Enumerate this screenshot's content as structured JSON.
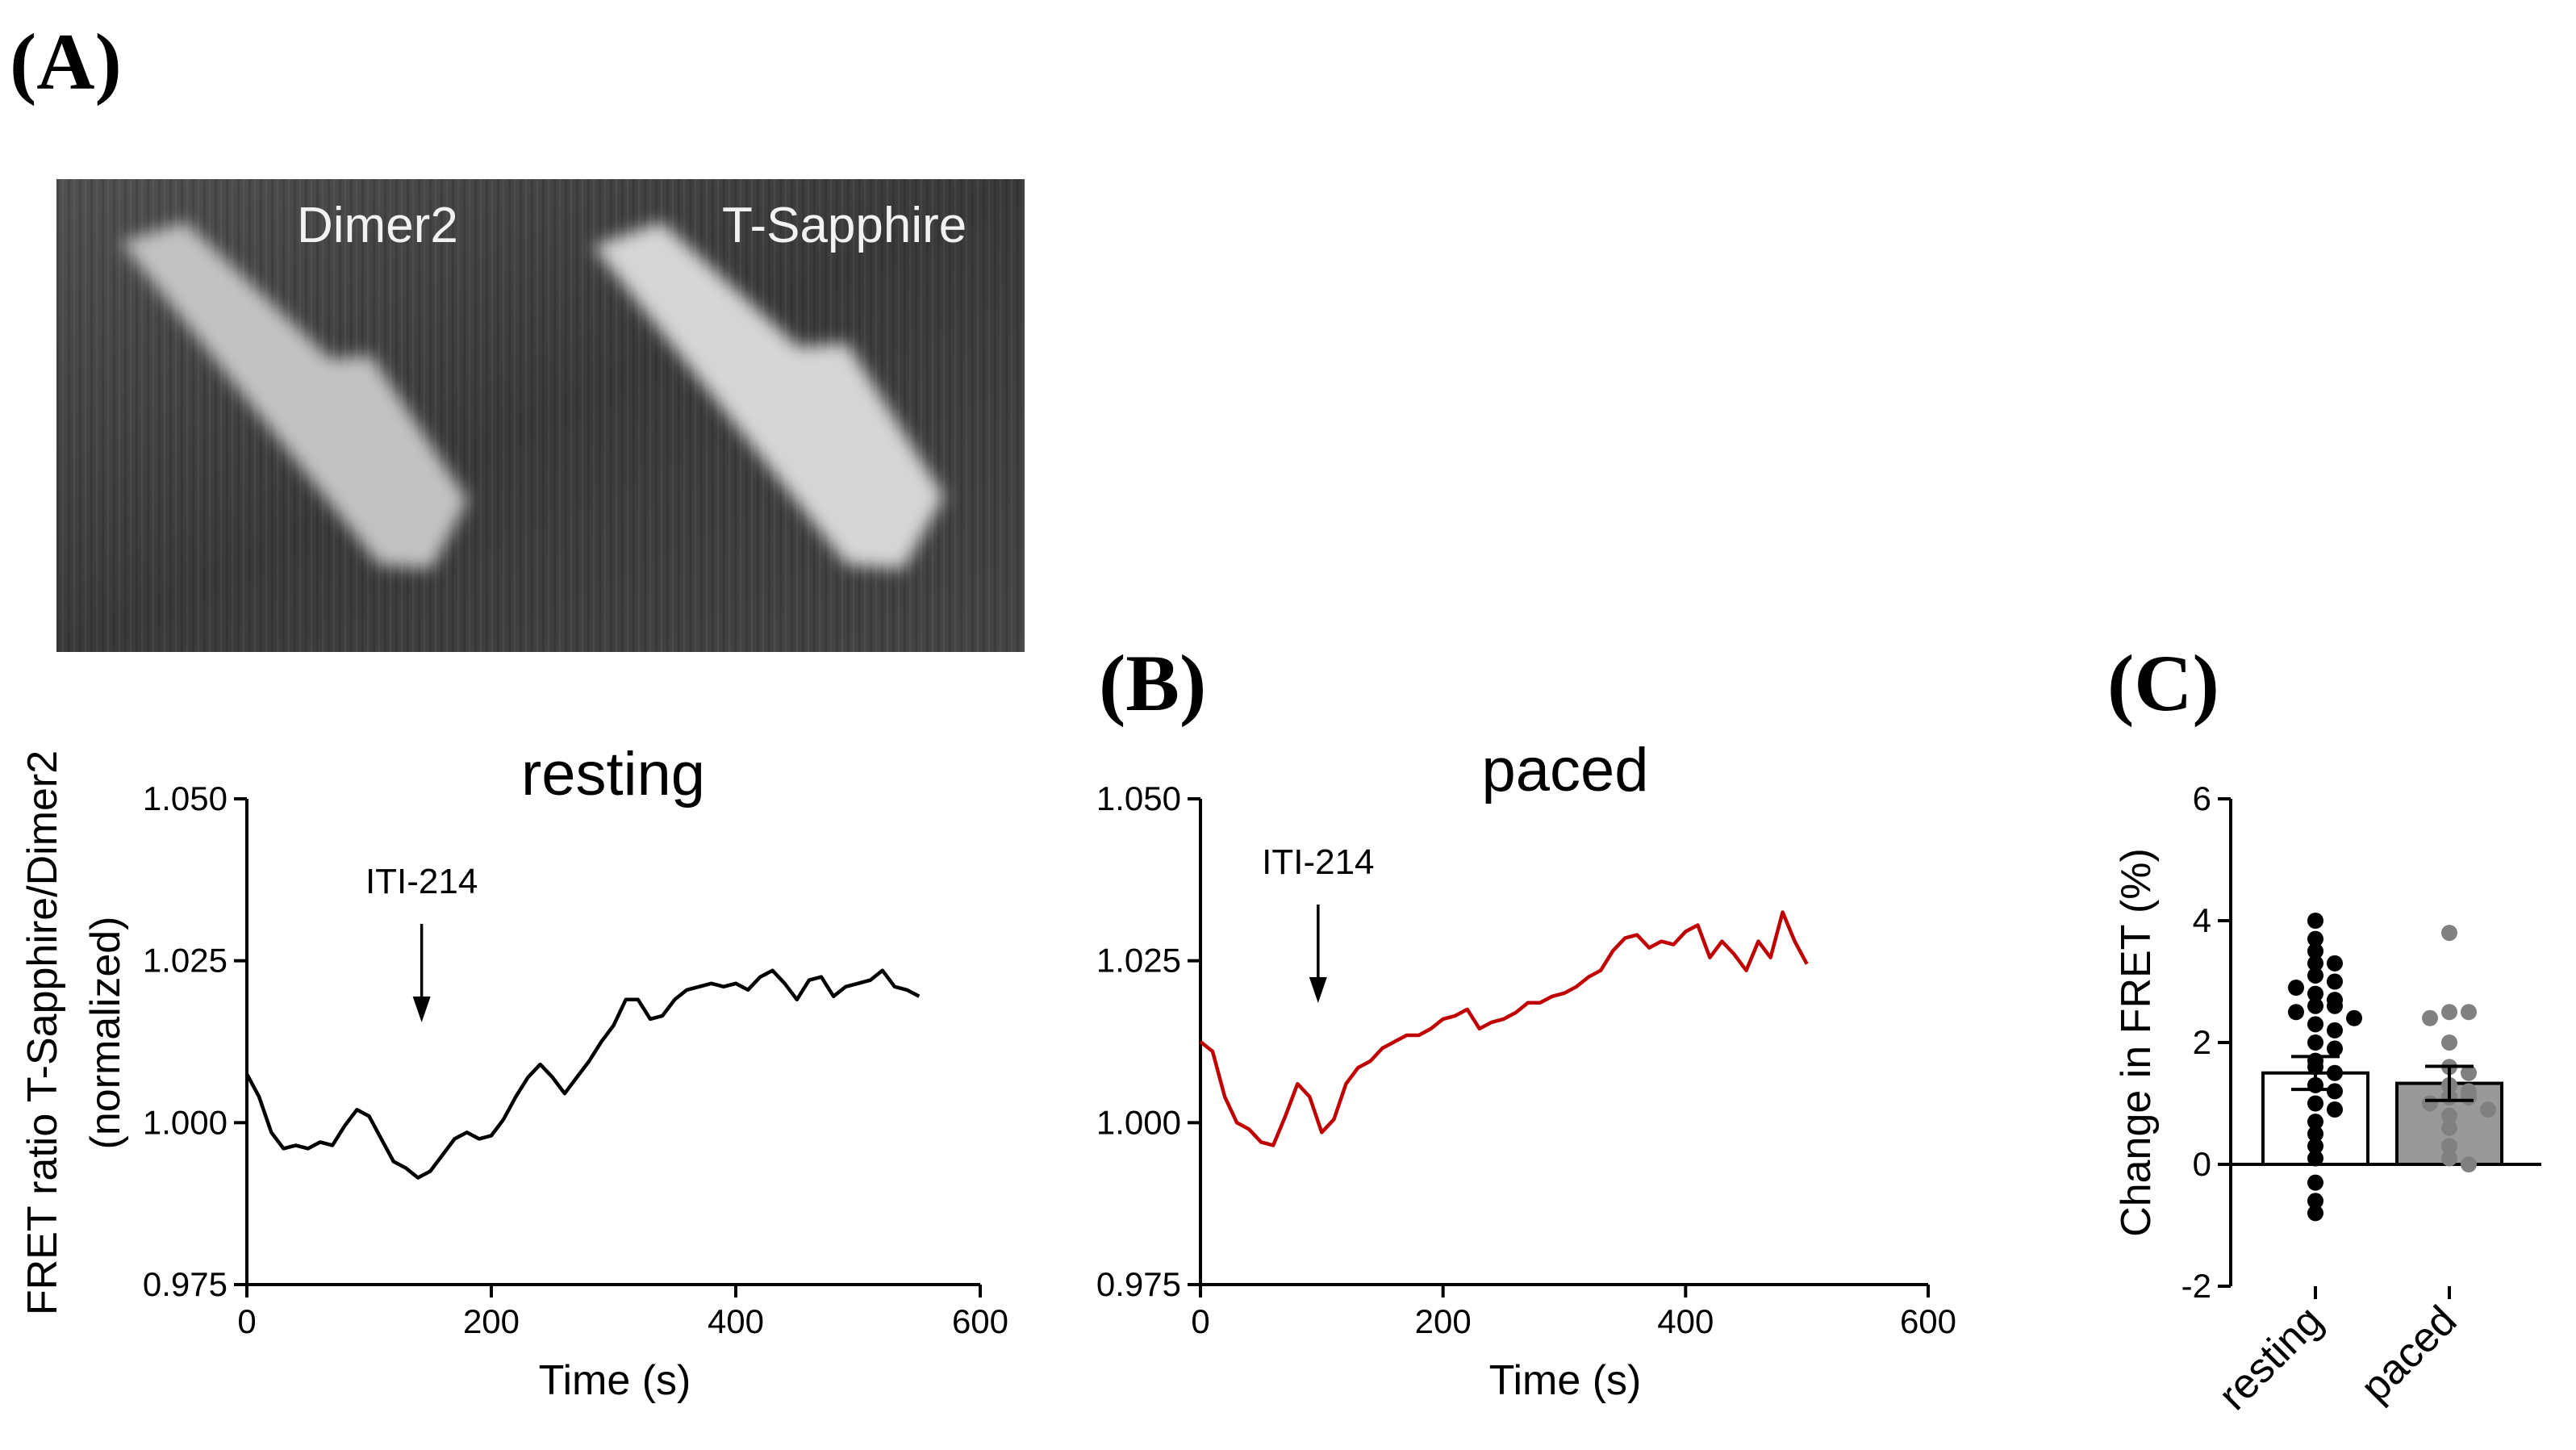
{
  "panel_labels": {
    "a": "(A)",
    "b": "(B)",
    "c": "(C)"
  },
  "image_panel": {
    "left_label": "Dimer2",
    "right_label": "T-Sapphire"
  },
  "chart_data": [
    {
      "type": "line",
      "title": "resting",
      "xlabel": "Time (s)",
      "ylabel_line1": "FRET ratio T-Sapphire/Dimer2",
      "ylabel_line2": "(normalized)",
      "xlim": [
        0,
        600
      ],
      "ylim": [
        0.975,
        1.05
      ],
      "xticks": [
        "0",
        "200",
        "400",
        "600"
      ],
      "yticks": [
        "0.975",
        "1.000",
        "1.025",
        "1.050"
      ],
      "color": "#000000",
      "annotation": {
        "text": "ITI-214",
        "x": 143
      },
      "x": [
        0,
        10,
        20,
        30,
        40,
        50,
        60,
        70,
        80,
        90,
        100,
        110,
        120,
        130,
        140,
        150,
        160,
        170,
        180,
        190,
        200,
        210,
        220,
        230,
        240,
        250,
        260,
        270,
        280,
        290,
        300,
        310,
        320,
        330,
        340,
        350,
        360,
        370,
        380,
        390,
        400,
        410,
        420,
        430,
        440,
        450,
        460,
        470,
        480,
        490,
        500,
        510,
        520,
        530,
        540,
        550
      ],
      "y": [
        1.0075,
        1.004,
        0.9985,
        0.996,
        0.9965,
        0.996,
        0.997,
        0.9965,
        0.9995,
        1.002,
        1.001,
        0.9975,
        0.994,
        0.993,
        0.9915,
        0.9925,
        0.995,
        0.9975,
        0.9985,
        0.9975,
        0.998,
        1.0005,
        1.004,
        1.007,
        1.009,
        1.007,
        1.0045,
        1.007,
        1.0095,
        1.0125,
        1.015,
        1.019,
        1.019,
        1.016,
        1.0165,
        1.019,
        1.0205,
        1.021,
        1.0215,
        1.021,
        1.0215,
        1.0205,
        1.0225,
        1.0235,
        1.0215,
        1.019,
        1.022,
        1.0225,
        1.0195,
        1.021,
        1.0215,
        1.022,
        1.0235,
        1.021,
        1.0205,
        1.0195
      ]
    },
    {
      "type": "line",
      "title": "paced",
      "xlabel": "Time (s)",
      "xlim": [
        0,
        600
      ],
      "ylim": [
        0.975,
        1.05
      ],
      "xticks": [
        "0",
        "200",
        "400",
        "600"
      ],
      "yticks": [
        "0.975",
        "1.000",
        "1.025",
        "1.050"
      ],
      "color": "#c00000",
      "annotation": {
        "text": "ITI-214",
        "x": 97
      },
      "x": [
        0,
        10,
        20,
        30,
        40,
        50,
        60,
        70,
        80,
        90,
        100,
        110,
        120,
        130,
        140,
        150,
        160,
        170,
        180,
        190,
        200,
        210,
        220,
        230,
        240,
        250,
        260,
        270,
        280,
        290,
        300,
        310,
        320,
        330,
        340,
        350,
        360,
        370,
        380,
        390,
        400,
        410,
        420,
        430,
        440,
        450,
        460,
        470,
        480,
        490,
        500
      ],
      "y": [
        1.0125,
        1.011,
        1.004,
        1.0,
        0.999,
        0.997,
        0.9965,
        1.001,
        1.006,
        1.004,
        0.9985,
        1.0005,
        1.006,
        1.0085,
        1.0095,
        1.0115,
        1.0125,
        1.0135,
        1.0135,
        1.0145,
        1.016,
        1.0165,
        1.0175,
        1.0145,
        1.0155,
        1.016,
        1.017,
        1.0185,
        1.0185,
        1.0195,
        1.02,
        1.021,
        1.0225,
        1.0235,
        1.0265,
        1.0285,
        1.029,
        1.027,
        1.028,
        1.0275,
        1.0295,
        1.0305,
        1.0255,
        1.028,
        1.026,
        1.0235,
        1.028,
        1.0255,
        1.0325,
        1.028,
        1.0245
      ]
    },
    {
      "type": "bar",
      "ylabel": "Change in FRET (%)",
      "ylim": [
        -2,
        6
      ],
      "yticks": [
        "-2",
        "0",
        "2",
        "4",
        "6"
      ],
      "categories": [
        "resting",
        "paced"
      ],
      "values": [
        1.5,
        1.33
      ],
      "sem": [
        0.27,
        0.28
      ],
      "bar_colors": [
        "#ffffff",
        "#999999"
      ],
      "point_colors": [
        "#000000",
        "#808080"
      ],
      "points": [
        [
          4.0,
          3.7,
          3.5,
          3.3,
          3.3,
          3.1,
          3.0,
          2.9,
          2.8,
          2.7,
          2.6,
          2.6,
          2.5,
          2.4,
          2.3,
          2.2,
          2.0,
          1.9,
          1.7,
          1.6,
          1.5,
          1.3,
          1.2,
          1.0,
          0.9,
          0.7,
          0.5,
          0.3,
          0.1,
          -0.3,
          -0.6,
          -0.8
        ],
        [
          3.8,
          2.5,
          2.5,
          2.4,
          2.0,
          1.6,
          1.5,
          1.3,
          1.2,
          1.1,
          1.1,
          1.0,
          0.9,
          0.8,
          0.6,
          0.3,
          0.1,
          0.0
        ]
      ]
    }
  ]
}
